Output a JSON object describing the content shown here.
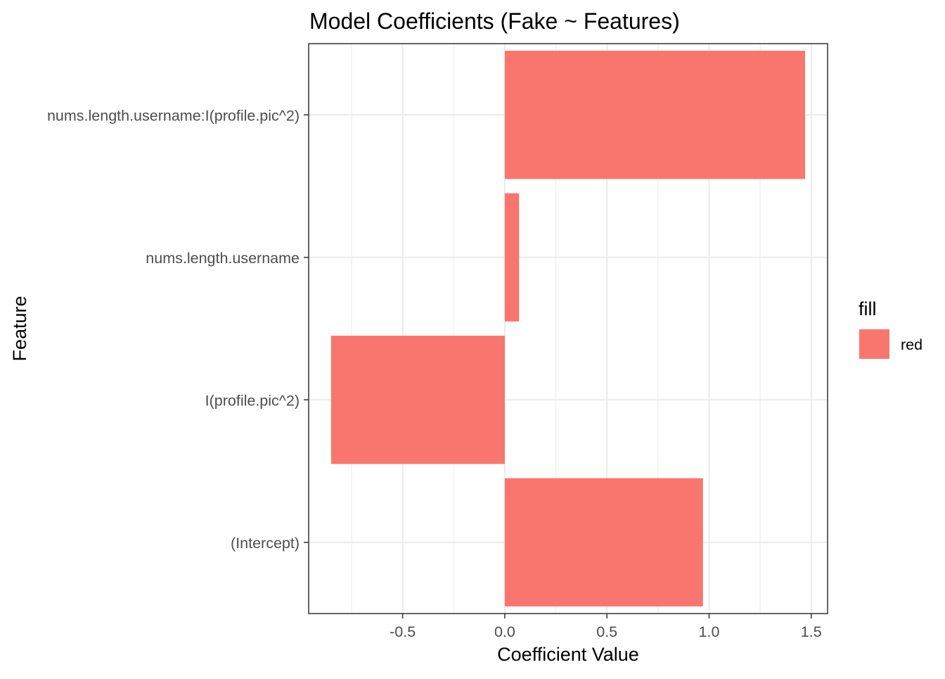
{
  "chart_data": {
    "type": "bar",
    "orientation": "horizontal",
    "title": "Model Coefficients (Fake ~ Features)",
    "xlabel": "Coefficient Value",
    "ylabel": "Feature",
    "categories": [
      "(Intercept)",
      "I(profile.pic^2)",
      "nums.length.username",
      "nums.length.username:I(profile.pic^2)"
    ],
    "values": [
      0.97,
      -0.85,
      0.07,
      1.47
    ],
    "xlim": [
      -0.96,
      1.58
    ],
    "x_ticks": [
      -0.5,
      0.0,
      0.5,
      1.0,
      1.5
    ],
    "x_tick_labels": [
      "-0.5",
      "0.0",
      "0.5",
      "1.0",
      "1.5"
    ],
    "grid": true,
    "legend": {
      "title": "fill",
      "position": "right",
      "entries": [
        {
          "label": "red",
          "color": "#F8766D"
        }
      ]
    },
    "colors": {
      "bar": "#F8766D",
      "grid": "#ebebeb",
      "panel_border": "#333333",
      "tick_label": "#4d4d4d"
    }
  }
}
